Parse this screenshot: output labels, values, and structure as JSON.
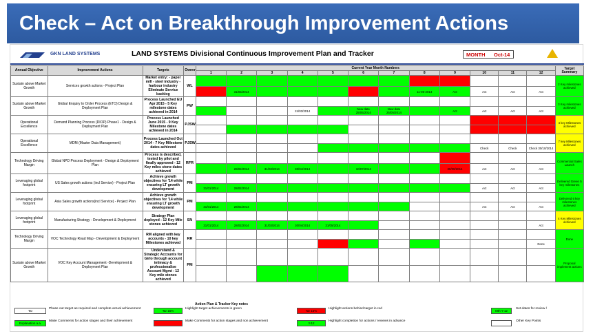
{
  "slide_title": "Check – Act on Breakthrough Improvement Actions",
  "header": {
    "logo_text": "GKN LAND SYSTEMS",
    "doc_title": "LAND SYSTEMS Divisional Continuous Improvement Plan and Tracker",
    "month_label": "MONTH",
    "month_value": "Oct-14"
  },
  "table": {
    "col_headers": {
      "objective": "Annual Objective",
      "actions": "Improvement Actions",
      "targets": "Targets",
      "owner": "Owner"
    },
    "month_band": "Current Year Month Numbers",
    "month_numbers": [
      "1",
      "2",
      "3",
      "4",
      "5",
      "6",
      "7",
      "8",
      "9",
      "10",
      "11",
      "12"
    ],
    "summary_header": "Target Summary",
    "rows": [
      {
        "objective": "Sustain above Market Growth",
        "action": "Services growth actions - Project Plan",
        "target": "Market entry: - paper mill - steel industry - harbour industry Eliminate Service backlog",
        "owner": "WL",
        "cells": [
          [
            "g",
            "r"
          ],
          [
            "g",
            "g"
          ],
          [
            "g",
            "g"
          ],
          [
            "g",
            "g"
          ],
          [
            "g",
            "g"
          ],
          [
            "g",
            "r"
          ],
          [
            "g",
            "g"
          ],
          [
            "r",
            "g"
          ],
          [
            "r",
            "g"
          ],
          [
            "w",
            "w"
          ],
          [
            "w",
            "w"
          ],
          [
            "w",
            "w"
          ]
        ],
        "vals": [
          "",
          "31/03/2014",
          "",
          "",
          "",
          "",
          "",
          "11-06-2014",
          "Act",
          "Act",
          "Act",
          "Act"
        ],
        "summary": "2 Key milestones achieved",
        "summary_color": "g"
      },
      {
        "objective": "Sustain above Market Growth",
        "action": "Global Enquiry to Order Process (ETO) Design & Deployment Plan",
        "target": "Process Launched EU Apr 2015 - 5 Key milestone dates achieved in 2014",
        "owner": "PW",
        "cells": [
          [
            "w",
            "g"
          ],
          [
            "w",
            "w"
          ],
          [
            "w",
            "w"
          ],
          [
            "w",
            "w"
          ],
          [
            "w",
            "g"
          ],
          [
            "w",
            "g"
          ],
          [
            "w",
            "g"
          ],
          [
            "w",
            "g"
          ],
          [
            "w",
            "g"
          ],
          [
            "w",
            "w"
          ],
          [
            "w",
            "w"
          ],
          [
            "w",
            "w"
          ]
        ],
        "vals": [
          "",
          "",
          "",
          "24/03/2014",
          "",
          "New date 25/05/2014",
          "New date 25/05/2014",
          "",
          "Act",
          "Act",
          "Act",
          "Act"
        ],
        "summary": "3 Key milestones achieved",
        "summary_color": "g"
      },
      {
        "objective": "Operational Excellence",
        "action": "Demand Planning Process (DIOP) Phase1 - Design & Deployment Plan",
        "target": "Process Launched June 2015 - 9 Key Milestone dates achieved in 2014",
        "owner": "PJSW",
        "cells": [
          [
            "w",
            "w"
          ],
          [
            "w",
            "g"
          ],
          [
            "w",
            "g"
          ],
          [
            "w",
            "g"
          ],
          [
            "w",
            "g"
          ],
          [
            "w",
            "w"
          ],
          [
            "w",
            "w"
          ],
          [
            "w",
            "w"
          ],
          [
            "w",
            "w"
          ],
          [
            "r",
            "r"
          ],
          [
            "r",
            "r"
          ],
          [
            "r",
            "r"
          ]
        ],
        "vals": [
          "",
          "",
          "",
          "",
          "",
          "",
          "",
          "",
          "",
          "",
          "",
          ""
        ],
        "summary": "4 key Milestones achieved",
        "summary_color": "y"
      },
      {
        "objective": "Operational Excellence",
        "action": "MDM (Master Data Management)",
        "target": "Process Launched Oct 2014 - 7 Key Milestone dates achieved",
        "owner": "PJSW",
        "cells": [
          [
            "w",
            "w"
          ],
          [
            "w",
            "w"
          ],
          [
            "w",
            "w"
          ],
          [
            "w",
            "w"
          ],
          [
            "w",
            "g"
          ],
          [
            "w",
            "g"
          ],
          [
            "w",
            "g"
          ],
          [
            "w",
            "g"
          ],
          [
            "w",
            "g"
          ],
          [
            "w",
            "w"
          ],
          [
            "w",
            "w"
          ],
          [
            "w",
            "w"
          ]
        ],
        "vals": [
          "",
          "",
          "",
          "",
          "",
          "",
          "",
          "",
          "",
          "Check",
          "Check",
          "Check 30/10/2014"
        ],
        "summary": "7 key Milestones achieved",
        "summary_color": "y"
      },
      {
        "objective": "Technology Driving Margin",
        "action": "Global NPD Process Deployment - Design & Deployment Plan",
        "target": "Process is described, tested by pilot and finally approved - 12 Key miles stone dates achieved",
        "owner": "RFR",
        "cells": [
          [
            "w",
            "g"
          ],
          [
            "w",
            "g"
          ],
          [
            "w",
            "g"
          ],
          [
            "w",
            "g"
          ],
          [
            "w",
            "g"
          ],
          [
            "w",
            "g"
          ],
          [
            "w",
            "g"
          ],
          [
            "w",
            "g"
          ],
          [
            "r",
            "r"
          ],
          [
            "w",
            "w"
          ],
          [
            "w",
            "w"
          ],
          [
            "w",
            "w"
          ]
        ],
        "vals": [
          "",
          "28/02/2014",
          "31/03/2014",
          "30/04/2014",
          "",
          "10/07/2014",
          "",
          "",
          "30/09/2014",
          "Act",
          "Act",
          "Act"
        ],
        "summary": "Commercial Sales Launch",
        "summary_color": "g"
      },
      {
        "objective": "Leveraging global footprint",
        "action": "US Sales growth actions (incl Service) - Project Plan",
        "target": "Achieve growth objectives for '14 while ensuring LT growth development",
        "owner": "PM",
        "cells": [
          [
            "w",
            "g"
          ],
          [
            "w",
            "g"
          ],
          [
            "w",
            "g"
          ],
          [
            "w",
            "g"
          ],
          [
            "w",
            "g"
          ],
          [
            "w",
            "g"
          ],
          [
            "w",
            "g"
          ],
          [
            "w",
            "g"
          ],
          [
            "w",
            "g"
          ],
          [
            "w",
            "w"
          ],
          [
            "w",
            "w"
          ],
          [
            "w",
            "w"
          ]
        ],
        "vals": [
          "31/01/2014",
          "28/02/2014",
          "",
          "",
          "",
          "",
          "",
          "",
          "",
          "Act",
          "Act",
          "Act"
        ],
        "summary": "Delivered Green 5 key milestones",
        "summary_color": "g"
      },
      {
        "objective": "Leveraging global footprint",
        "action": "Asia Sales growth actions(incl Service) - Project Plan",
        "target": "Achieve growth objectives for '14 while ensuring LT growth development",
        "owner": "PM",
        "cells": [
          [
            "w",
            "g"
          ],
          [
            "w",
            "g"
          ],
          [
            "w",
            "g"
          ],
          [
            "w",
            "g"
          ],
          [
            "w",
            "g"
          ],
          [
            "w",
            "g"
          ],
          [
            "w",
            "g"
          ],
          [
            "w",
            "w"
          ],
          [
            "w",
            "w"
          ],
          [
            "w",
            "w"
          ],
          [
            "w",
            "w"
          ],
          [
            "w",
            "w"
          ]
        ],
        "vals": [
          "31/01/2014",
          "28/02/2014",
          "",
          "",
          "",
          "",
          "",
          "",
          "",
          "Act",
          "Act",
          "Act"
        ],
        "summary": "Delivered 6 key milestones achieved",
        "summary_color": "g"
      },
      {
        "objective": "Leveraging global footprint",
        "action": "Manufacturing Strategy - Development & Deployment",
        "target": "Strategy Plan deployed - 12 Key Mile stones achieved",
        "owner": "SN",
        "cells": [
          [
            "w",
            "g"
          ],
          [
            "w",
            "g"
          ],
          [
            "w",
            "g"
          ],
          [
            "w",
            "g"
          ],
          [
            "w",
            "g"
          ],
          [
            "w",
            "g"
          ],
          [
            "w",
            "w"
          ],
          [
            "w",
            "w"
          ],
          [
            "w",
            "w"
          ],
          [
            "w",
            "w"
          ],
          [
            "w",
            "w"
          ],
          [
            "w",
            "w"
          ]
        ],
        "vals": [
          "31/01/2014",
          "28/02/2014",
          "31/03/2014",
          "30/04/2014",
          "31/05/2014",
          "",
          "",
          "",
          "",
          "",
          "",
          "Act"
        ],
        "summary": "4 Key Milestones achieved",
        "summary_color": "y"
      },
      {
        "objective": "Technology Driving Margin",
        "action": "VOC Technology Road Map - Development & Deployment",
        "target": "RM aligned with key accounts - 10 key Milestones achieved",
        "owner": "RR",
        "cells": [
          [
            "w",
            "w"
          ],
          [
            "w",
            "w"
          ],
          [
            "w",
            "w"
          ],
          [
            "w",
            "w"
          ],
          [
            "w",
            "r"
          ],
          [
            "w",
            "g"
          ],
          [
            "w",
            "w"
          ],
          [
            "w",
            "g"
          ],
          [
            "w",
            "w"
          ],
          [
            "w",
            "w"
          ],
          [
            "w",
            "w"
          ],
          [
            "w",
            "w"
          ]
        ],
        "vals": [
          "",
          "",
          "",
          "",
          "",
          "",
          "",
          "",
          "",
          "",
          "",
          "Done"
        ],
        "summary": "Done",
        "summary_color": "g"
      },
      {
        "objective": "Sustain above Market Growth",
        "action": "VOC Key Account Management -Development & Deployment Plan",
        "target": "Understand & Strategic Accounts for Girlo through account intimacy & professionalise Account Mgmt - 12 Key mile stones achieved",
        "owner": "PM",
        "cells": [
          [
            "w",
            "w"
          ],
          [
            "w",
            "w"
          ],
          [
            "w",
            "g"
          ],
          [
            "w",
            "g"
          ],
          [
            "w",
            "g"
          ],
          [
            "w",
            "w"
          ],
          [
            "w",
            "w"
          ],
          [
            "w",
            "w"
          ],
          [
            "w",
            "w"
          ],
          [
            "w",
            "w"
          ],
          [
            "w",
            "w"
          ],
          [
            "w",
            "w"
          ]
        ],
        "vals": [
          "",
          "",
          "",
          "",
          "",
          "",
          "",
          "",
          "",
          "",
          "",
          ""
        ],
        "summary": "Proposal implement actions",
        "summary_color": "g"
      }
    ]
  },
  "legend": {
    "title": "Action Plan & Tracker Key notes",
    "items": [
      {
        "box": "Tar",
        "text": "Phase out target as required and complete actual achievement",
        "color": "w"
      },
      {
        "box": "Explanation a.a.",
        "text": "Make Comments for action stages and their achievement",
        "color": "g"
      },
      {
        "box": "Tar 15%",
        "text": "Highlight target achievements in green",
        "color": "g"
      },
      {
        "box": "Tar 15%",
        "text": "Highlight actions behind target in red",
        "color": "r"
      },
      {
        "box": "",
        "text": "Make Comments for action stages and non achievement",
        "color": "r"
      },
      {
        "box": "Y-12",
        "text": "Highlight completion for actions / reviews in advance",
        "color": "g"
      },
      {
        "box": "Mth Y-12",
        "text": "Set dates for review /",
        "color": "g"
      },
      {
        "box": "",
        "text": "Other Key Points",
        "color": "w"
      }
    ]
  },
  "colors": {
    "title_band": "#2d5aa0",
    "green": "#00ff00",
    "red": "#ff0000",
    "yellow": "#ffff00"
  }
}
